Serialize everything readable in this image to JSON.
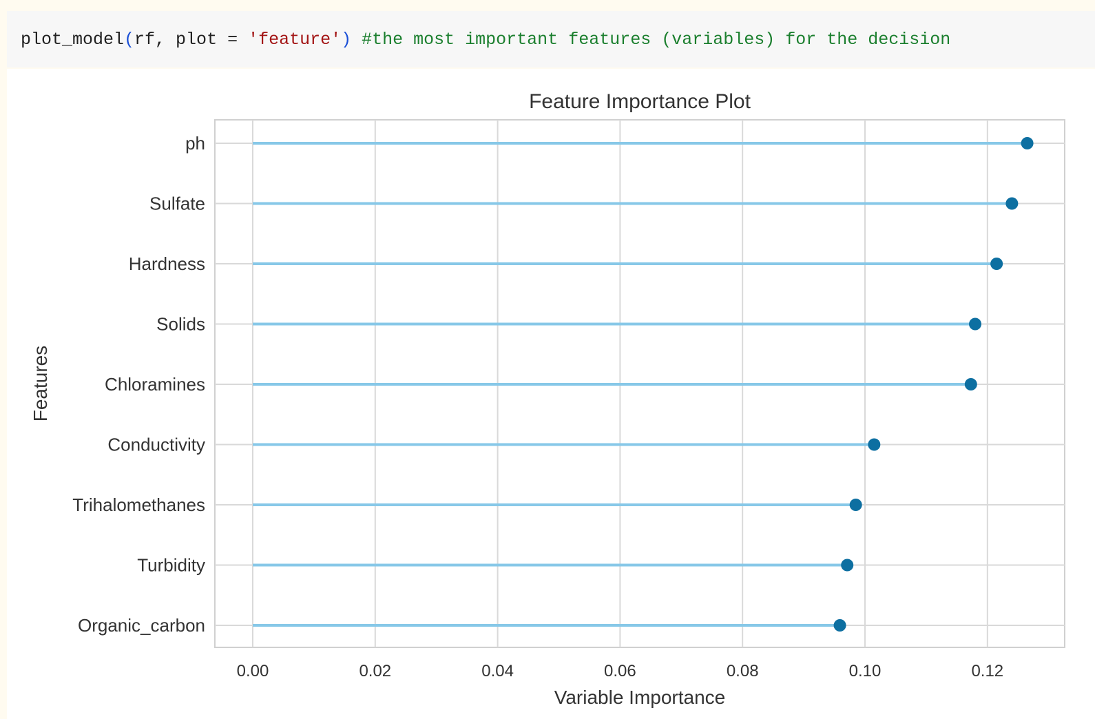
{
  "code_cell": {
    "func": "plot_model",
    "open_paren": "(",
    "args": "rf, plot = ",
    "string_arg": "'feature'",
    "close_paren": ")",
    "space": " ",
    "comment": "#the most important features (variables) for the decision"
  },
  "colors": {
    "stem": "#87c8e8",
    "marker": "#0d6fa1",
    "grid": "#d9d9d9",
    "frame": "#d0d0d0"
  },
  "chart_data": {
    "type": "lollipop",
    "title": "Feature Importance Plot",
    "xlabel": "Variable Importance",
    "ylabel": "Features",
    "xlim": [
      -0.0064,
      0.1325
    ],
    "xticks": [
      0.0,
      0.02,
      0.04,
      0.06,
      0.08,
      0.1,
      0.12
    ],
    "xtick_labels": [
      "0.00",
      "0.02",
      "0.04",
      "0.06",
      "0.08",
      "0.10",
      "0.12"
    ],
    "grid": true,
    "categories": [
      "ph",
      "Sulfate",
      "Hardness",
      "Solids",
      "Chloramines",
      "Conductivity",
      "Trihalomethanes",
      "Turbidity",
      "Organic_carbon"
    ],
    "values": [
      0.1265,
      0.124,
      0.1215,
      0.118,
      0.1173,
      0.1015,
      0.0985,
      0.0971,
      0.0959
    ]
  }
}
